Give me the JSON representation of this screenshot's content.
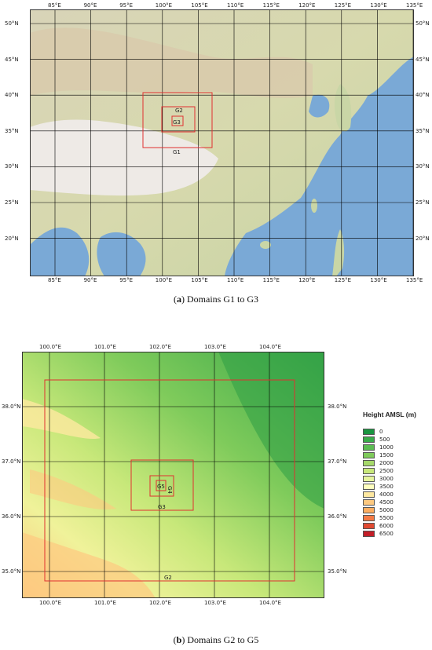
{
  "panel_a": {
    "caption_letter": "a",
    "caption_text": "Domains G1 to G3",
    "lon_labels": [
      "85°E",
      "90°E",
      "95°E",
      "100°E",
      "105°E",
      "110°E",
      "115°E",
      "120°E",
      "125°E",
      "130°E",
      "135°E"
    ],
    "lat_labels": [
      "50°N",
      "45°N",
      "40°N",
      "35°N",
      "30°N",
      "25°N",
      "20°N"
    ],
    "domain_labels": [
      "G1",
      "G2",
      "G3"
    ]
  },
  "panel_b": {
    "caption_letter": "b",
    "caption_text": "Domains G2 to G5",
    "lon_labels": [
      "100.0°E",
      "101.0°E",
      "102.0°E",
      "103.0°E",
      "104.0°E"
    ],
    "lat_labels": [
      "38.0°N",
      "37.0°N",
      "36.0°N",
      "35.0°N"
    ],
    "domain_labels": [
      "G2",
      "G3",
      "G4",
      "G5"
    ]
  },
  "legend": {
    "title": "Height AMSL (m)",
    "items": [
      {
        "label": "0",
        "color": "#1a9641"
      },
      {
        "label": "500",
        "color": "#3aad4a"
      },
      {
        "label": "1000",
        "color": "#5cbd52"
      },
      {
        "label": "1500",
        "color": "#7fcb5b"
      },
      {
        "label": "2000",
        "color": "#a6d96a"
      },
      {
        "label": "2500",
        "color": "#c8e87a"
      },
      {
        "label": "3000",
        "color": "#e6f59d"
      },
      {
        "label": "3500",
        "color": "#ffffbf"
      },
      {
        "label": "4000",
        "color": "#fee8a0"
      },
      {
        "label": "4500",
        "color": "#fdc980"
      },
      {
        "label": "5000",
        "color": "#fdae61"
      },
      {
        "label": "5500",
        "color": "#f47a45"
      },
      {
        "label": "6000",
        "color": "#e04a32"
      },
      {
        "label": "6500",
        "color": "#c21e28"
      }
    ]
  },
  "colors": {
    "domain_box": "#e03030",
    "ocean": "#7aa9d6",
    "land_low": "#d9dcb0",
    "plateau": "#e8e4dc",
    "gridline": "#000000"
  }
}
